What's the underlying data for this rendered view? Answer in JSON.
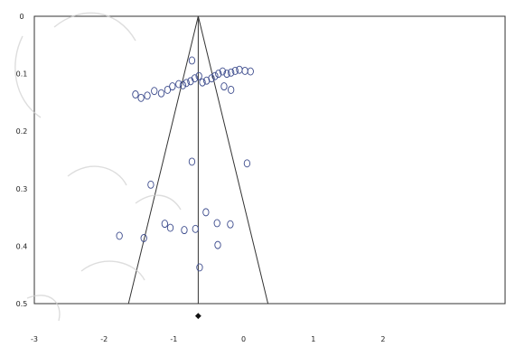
{
  "chart_data": {
    "type": "scatter",
    "title": "",
    "xlabel": "",
    "ylabel": "",
    "xlim": [
      -3,
      3.75
    ],
    "ylim": [
      0,
      0.5
    ],
    "y_inverted": true,
    "grid": false,
    "x_ticks": [
      "-3",
      "-2",
      "-1",
      "0",
      "1",
      "2"
    ],
    "x_tick_values": [
      -3,
      -2,
      -1,
      0,
      1,
      2
    ],
    "y_ticks": [
      "0",
      "0.1",
      "0.2",
      "0.3",
      "0.4",
      "0.5"
    ],
    "y_tick_values": [
      0,
      0.1,
      0.2,
      0.3,
      0.4,
      0.5
    ],
    "pooled_effect": -0.65,
    "funnel_base": [
      -1.65,
      0.35
    ],
    "diamond_label": "◆",
    "points_color": "#3b4a8c",
    "series": [
      {
        "points": [
          {
            "x": -0.74,
            "y": 0.077
          },
          {
            "x": -0.93,
            "y": 0.118
          },
          {
            "x": -0.87,
            "y": 0.12
          },
          {
            "x": -0.82,
            "y": 0.116
          },
          {
            "x": -0.76,
            "y": 0.113
          },
          {
            "x": -0.7,
            "y": 0.108
          },
          {
            "x": -0.64,
            "y": 0.104
          },
          {
            "x": -0.59,
            "y": 0.115
          },
          {
            "x": -0.53,
            "y": 0.112
          },
          {
            "x": -0.46,
            "y": 0.108
          },
          {
            "x": -0.41,
            "y": 0.104
          },
          {
            "x": -0.36,
            "y": 0.1
          },
          {
            "x": -0.3,
            "y": 0.096
          },
          {
            "x": -0.24,
            "y": 0.1
          },
          {
            "x": -0.18,
            "y": 0.098
          },
          {
            "x": -0.12,
            "y": 0.095
          },
          {
            "x": -0.06,
            "y": 0.093
          },
          {
            "x": 0.02,
            "y": 0.095
          },
          {
            "x": 0.1,
            "y": 0.096
          },
          {
            "x": -0.28,
            "y": 0.122
          },
          {
            "x": -0.18,
            "y": 0.128
          },
          {
            "x": -1.28,
            "y": 0.13
          },
          {
            "x": -1.18,
            "y": 0.134
          },
          {
            "x": -1.09,
            "y": 0.128
          },
          {
            "x": -1.02,
            "y": 0.122
          },
          {
            "x": -1.55,
            "y": 0.136
          },
          {
            "x": -1.47,
            "y": 0.142
          },
          {
            "x": -1.38,
            "y": 0.138
          },
          {
            "x": -1.33,
            "y": 0.293
          },
          {
            "x": -0.74,
            "y": 0.253
          },
          {
            "x": 0.05,
            "y": 0.256
          },
          {
            "x": -0.54,
            "y": 0.341
          },
          {
            "x": -0.38,
            "y": 0.36
          },
          {
            "x": -0.19,
            "y": 0.362
          },
          {
            "x": -1.13,
            "y": 0.361
          },
          {
            "x": -1.05,
            "y": 0.368
          },
          {
            "x": -0.85,
            "y": 0.372
          },
          {
            "x": -0.69,
            "y": 0.37
          },
          {
            "x": -1.78,
            "y": 0.382
          },
          {
            "x": -1.43,
            "y": 0.386
          },
          {
            "x": -0.37,
            "y": 0.398
          },
          {
            "x": -0.63,
            "y": 0.437
          }
        ]
      }
    ]
  }
}
